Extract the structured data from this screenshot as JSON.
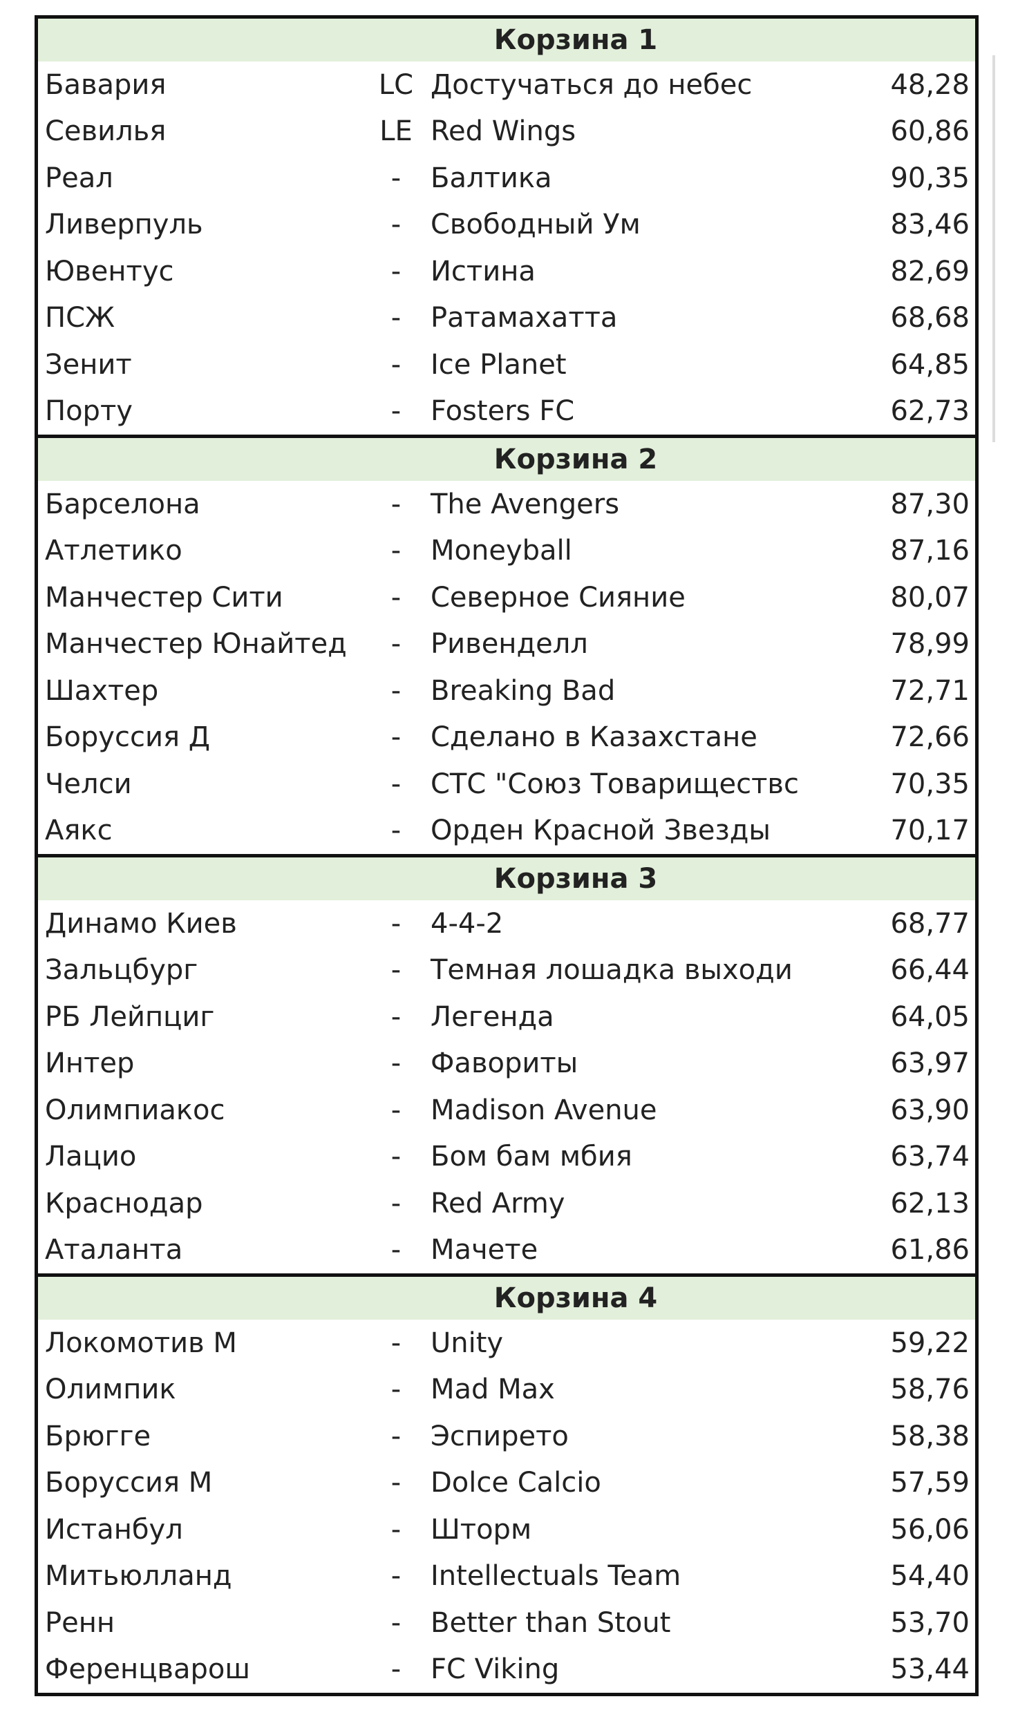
{
  "pots": [
    {
      "title": "Корзина 1",
      "rows": [
        {
          "team": "Бавария",
          "flag": "LC",
          "squad": "Достучаться до небес",
          "score": "48,28"
        },
        {
          "team": "Севилья",
          "flag": "LE",
          "squad": "Red Wings",
          "score": "60,86"
        },
        {
          "team": "Реал",
          "flag": "-",
          "squad": "Балтика",
          "score": "90,35"
        },
        {
          "team": "Ливерпуль",
          "flag": "-",
          "squad": "Свободный Ум",
          "score": "83,46"
        },
        {
          "team": "Ювентус",
          "flag": "-",
          "squad": "Истина",
          "score": "82,69"
        },
        {
          "team": "ПСЖ",
          "flag": "-",
          "squad": "Ратамахатта",
          "score": "68,68"
        },
        {
          "team": "Зенит",
          "flag": "-",
          "squad": "Ice Planet",
          "score": "64,85"
        },
        {
          "team": "Порту",
          "flag": "-",
          "squad": "Fosters FC",
          "score": "62,73"
        }
      ]
    },
    {
      "title": "Корзина 2",
      "rows": [
        {
          "team": "Барселона",
          "flag": "-",
          "squad": "The Avengers",
          "score": "87,30"
        },
        {
          "team": "Атлетико",
          "flag": "-",
          "squad": "Moneyball",
          "score": "87,16"
        },
        {
          "team": "Манчестер Сити",
          "flag": "-",
          "squad": "Северное Сияние",
          "score": "80,07"
        },
        {
          "team": "Манчестер Юнайтед",
          "flag": "-",
          "squad": "Ривенделл",
          "score": "78,99"
        },
        {
          "team": "Шахтер",
          "flag": "-",
          "squad": "Breaking Bad",
          "score": "72,71"
        },
        {
          "team": "Боруссия Д",
          "flag": "-",
          "squad": "Сделано в Казахстане",
          "score": "72,66"
        },
        {
          "team": "Челси",
          "flag": "-",
          "squad": "СТС \"Союз Товариществс",
          "score": "70,35"
        },
        {
          "team": "Аякс",
          "flag": "-",
          "squad": "Орден Красной Звезды",
          "score": "70,17"
        }
      ]
    },
    {
      "title": "Корзина 3",
      "rows": [
        {
          "team": "Динамо Киев",
          "flag": "-",
          "squad": "4-4-2",
          "score": "68,77"
        },
        {
          "team": "Зальцбург",
          "flag": "-",
          "squad": "Темная лошадка выходи",
          "score": "66,44"
        },
        {
          "team": "РБ Лейпциг",
          "flag": "-",
          "squad": "Легенда",
          "score": "64,05"
        },
        {
          "team": "Интер",
          "flag": "-",
          "squad": "Фавориты",
          "score": "63,97"
        },
        {
          "team": "Олимпиакос",
          "flag": "-",
          "squad": "Madison Avenue",
          "score": "63,90"
        },
        {
          "team": "Лацио",
          "flag": "-",
          "squad": "Бом бам мбия",
          "score": "63,74"
        },
        {
          "team": "Краснодар",
          "flag": "-",
          "squad": "Red Army",
          "score": "62,13"
        },
        {
          "team": "Аталанта",
          "flag": "-",
          "squad": "Мачете",
          "score": "61,86"
        }
      ]
    },
    {
      "title": "Корзина 4",
      "rows": [
        {
          "team": "Локомотив М",
          "flag": "-",
          "squad": "Unity",
          "score": "59,22"
        },
        {
          "team": "Олимпик",
          "flag": "-",
          "squad": "Mad Max",
          "score": "58,76"
        },
        {
          "team": "Брюгге",
          "flag": "-",
          "squad": "Эспирето",
          "score": "58,38"
        },
        {
          "team": "Боруссия М",
          "flag": "-",
          "squad": "Dolce Calcio",
          "score": "57,59"
        },
        {
          "team": "Истанбул",
          "flag": "-",
          "squad": "Шторм",
          "score": "56,06"
        },
        {
          "team": "Митьюлланд",
          "flag": "-",
          "squad": "Intellectuals Team",
          "score": "54,40"
        },
        {
          "team": "Ренн",
          "flag": "-",
          "squad": "Better than Stout",
          "score": "53,70"
        },
        {
          "team": "Ференцварош",
          "flag": "-",
          "squad": "FC Viking",
          "score": "53,44"
        }
      ]
    }
  ]
}
